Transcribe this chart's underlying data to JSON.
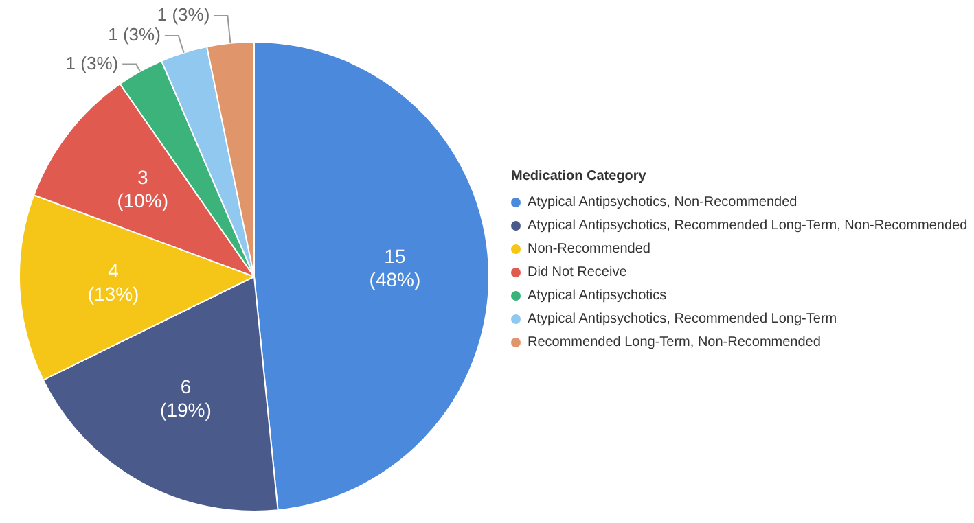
{
  "chart_data": {
    "type": "pie",
    "legend_title": "Medication Category",
    "legend": "right",
    "categories": [
      "Atypical Antipsychotics, Non-Recommended",
      "Atypical Antipsychotics, Recommended Long-Term, Non-Recommended",
      "Non-Recommended",
      "Did Not Receive",
      "Atypical Antipsychotics",
      "Atypical Antipsychotics, Recommended Long-Term",
      "Recommended Long-Term, Non-Recommended"
    ],
    "values": [
      15,
      6,
      4,
      3,
      1,
      1,
      1
    ],
    "value_labels": [
      "15 (48%)",
      "6 (19%)",
      "4 (13%)",
      "3 (10%)",
      "1 (3%)",
      "1 (3%)",
      "1 (3%)"
    ],
    "colors": [
      "#4a89dc",
      "#4a5a8a",
      "#f5c518",
      "#e05a50",
      "#3cb37a",
      "#90c8f0",
      "#e0956a"
    ]
  }
}
